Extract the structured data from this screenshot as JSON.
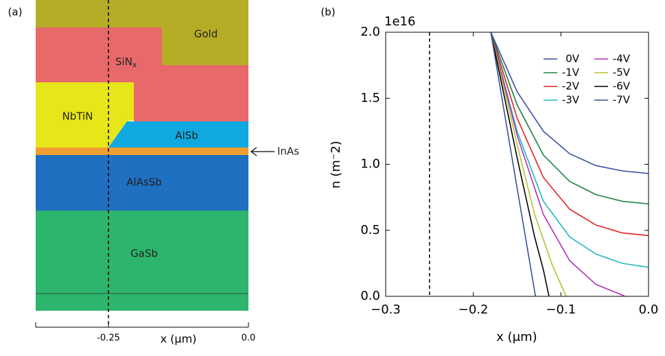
{
  "panel_a": {
    "label": "(a)",
    "layers": {
      "gold": "Gold",
      "sin": {
        "label": "SiN",
        "subscript": "x"
      },
      "nbtin": "NbTiN",
      "alsb": "AlSb",
      "inas": "InAs",
      "alassb": "AlAsSb",
      "gasb": "GaSb"
    },
    "xlabel": "x (μm)",
    "xlim": [
      -0.38,
      0
    ],
    "xticks": [
      {
        "value": -0.25,
        "label": "-0.25"
      },
      {
        "value": 0,
        "label": "0.0"
      }
    ]
  },
  "chart_data": {
    "type": "line",
    "panel_label": "(b)",
    "y_offset_label": "1e16",
    "xlabel": "x (μm)",
    "ylabel": "n (m⁻2)",
    "xlim": [
      -0.3,
      0
    ],
    "ylim": [
      0,
      2
    ],
    "xticks": [
      {
        "value": -0.3,
        "label": "−0.3"
      },
      {
        "value": -0.2,
        "label": "−0.2"
      },
      {
        "value": -0.1,
        "label": "−0.1"
      },
      {
        "value": 0,
        "label": "0.0"
      }
    ],
    "yticks": [
      {
        "value": 0,
        "label": "0.0"
      },
      0.5,
      {
        "value": 1,
        "label": "1.0"
      },
      1.5,
      {
        "value": 2,
        "label": "2.0"
      }
    ],
    "vline": -0.25,
    "series": [
      {
        "name": "0V",
        "color": "#3a4fa0",
        "x": [
          -0.18,
          -0.15,
          -0.12,
          -0.09,
          -0.06,
          -0.03,
          0
        ],
        "values": [
          2.0,
          1.55,
          1.25,
          1.08,
          0.99,
          0.95,
          0.93
        ]
      },
      {
        "name": "-1V",
        "color": "#1a8040",
        "x": [
          -0.18,
          -0.15,
          -0.12,
          -0.09,
          -0.06,
          -0.03,
          0
        ],
        "values": [
          2.0,
          1.45,
          1.07,
          0.87,
          0.77,
          0.72,
          0.7
        ]
      },
      {
        "name": "-2V",
        "color": "#e02020",
        "x": [
          -0.18,
          -0.15,
          -0.12,
          -0.09,
          -0.06,
          -0.03,
          0
        ],
        "values": [
          2.0,
          1.35,
          0.9,
          0.66,
          0.54,
          0.48,
          0.46
        ]
      },
      {
        "name": "-3V",
        "color": "#20b8c0",
        "x": [
          -0.18,
          -0.15,
          -0.12,
          -0.09,
          -0.06,
          -0.03,
          0
        ],
        "values": [
          2.0,
          1.25,
          0.72,
          0.45,
          0.32,
          0.25,
          0.22
        ]
      },
      {
        "name": "-4V",
        "color": "#b030b0",
        "x": [
          -0.18,
          -0.15,
          -0.12,
          -0.09,
          -0.06,
          -0.03,
          -0.027
        ],
        "values": [
          2.0,
          1.22,
          0.62,
          0.27,
          0.09,
          0.01,
          0
        ]
      },
      {
        "name": "-5V",
        "color": "#b8c030",
        "x": [
          -0.18,
          -0.15,
          -0.13,
          -0.11,
          -0.094
        ],
        "values": [
          2.0,
          1.15,
          0.62,
          0.24,
          0
        ]
      },
      {
        "name": "-6V",
        "color": "#000000",
        "x": [
          -0.18,
          -0.15,
          -0.13,
          -0.12,
          -0.1136
        ],
        "values": [
          2.0,
          1.05,
          0.45,
          0.2,
          0
        ]
      },
      {
        "name": "-7V",
        "color": "#3a4fa0",
        "x": [
          -0.18,
          -0.15,
          -0.14,
          -0.129
        ],
        "values": [
          2.0,
          0.82,
          0.43,
          0
        ]
      }
    ]
  }
}
